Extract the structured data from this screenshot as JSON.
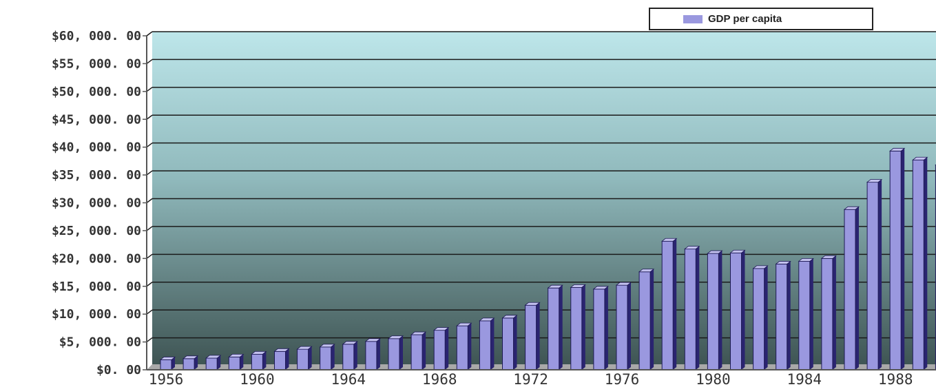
{
  "chart_data": {
    "type": "bar",
    "style": "3d-column",
    "legend": {
      "entries": [
        "GDP per capita"
      ],
      "placement": "top-right"
    },
    "x_tick_labels": [
      "1956",
      "1960",
      "1964",
      "1968",
      "1972",
      "1976",
      "1980",
      "1984",
      "1988"
    ],
    "y_tick_labels": [
      "$0. 00",
      "$5, 000. 00",
      "$10, 000. 00",
      "$15, 000. 00",
      "$20, 000. 00",
      "$25, 000. 00",
      "$30, 000. 00",
      "$35, 000. 00",
      "$40, 000. 00",
      "$45, 000. 00",
      "$50, 000. 00",
      "$55, 000. 00",
      "$60, 000. 00"
    ],
    "ylim": [
      0,
      60000
    ],
    "grid": true,
    "series": [
      {
        "name": "GDP per capita",
        "color": "#9a98df",
        "x": [
          1956,
          1957,
          1958,
          1959,
          1960,
          1961,
          1962,
          1963,
          1964,
          1965,
          1966,
          1967,
          1968,
          1969,
          1970,
          1971,
          1972,
          1973,
          1974,
          1975,
          1976,
          1977,
          1978,
          1979,
          1980,
          1981,
          1982,
          1983,
          1984,
          1985,
          1986,
          1987,
          1988,
          1989,
          1990
        ],
        "values": [
          1800,
          2000,
          2100,
          2300,
          2800,
          3300,
          3700,
          4100,
          4600,
          5100,
          5600,
          6300,
          7100,
          7900,
          8800,
          9300,
          11600,
          14700,
          14800,
          14500,
          15200,
          17600,
          23100,
          21700,
          20900,
          21000,
          18200,
          19000,
          19500,
          20000,
          28800,
          33700,
          39300,
          37700,
          36800
        ]
      }
    ],
    "colors": {
      "plot_top": "#bde6ea",
      "plot_bottom": "#3f5554",
      "bar_front": "#9a98df",
      "bar_side": "#2a2470",
      "bar_top": "#c3c1ef"
    }
  }
}
